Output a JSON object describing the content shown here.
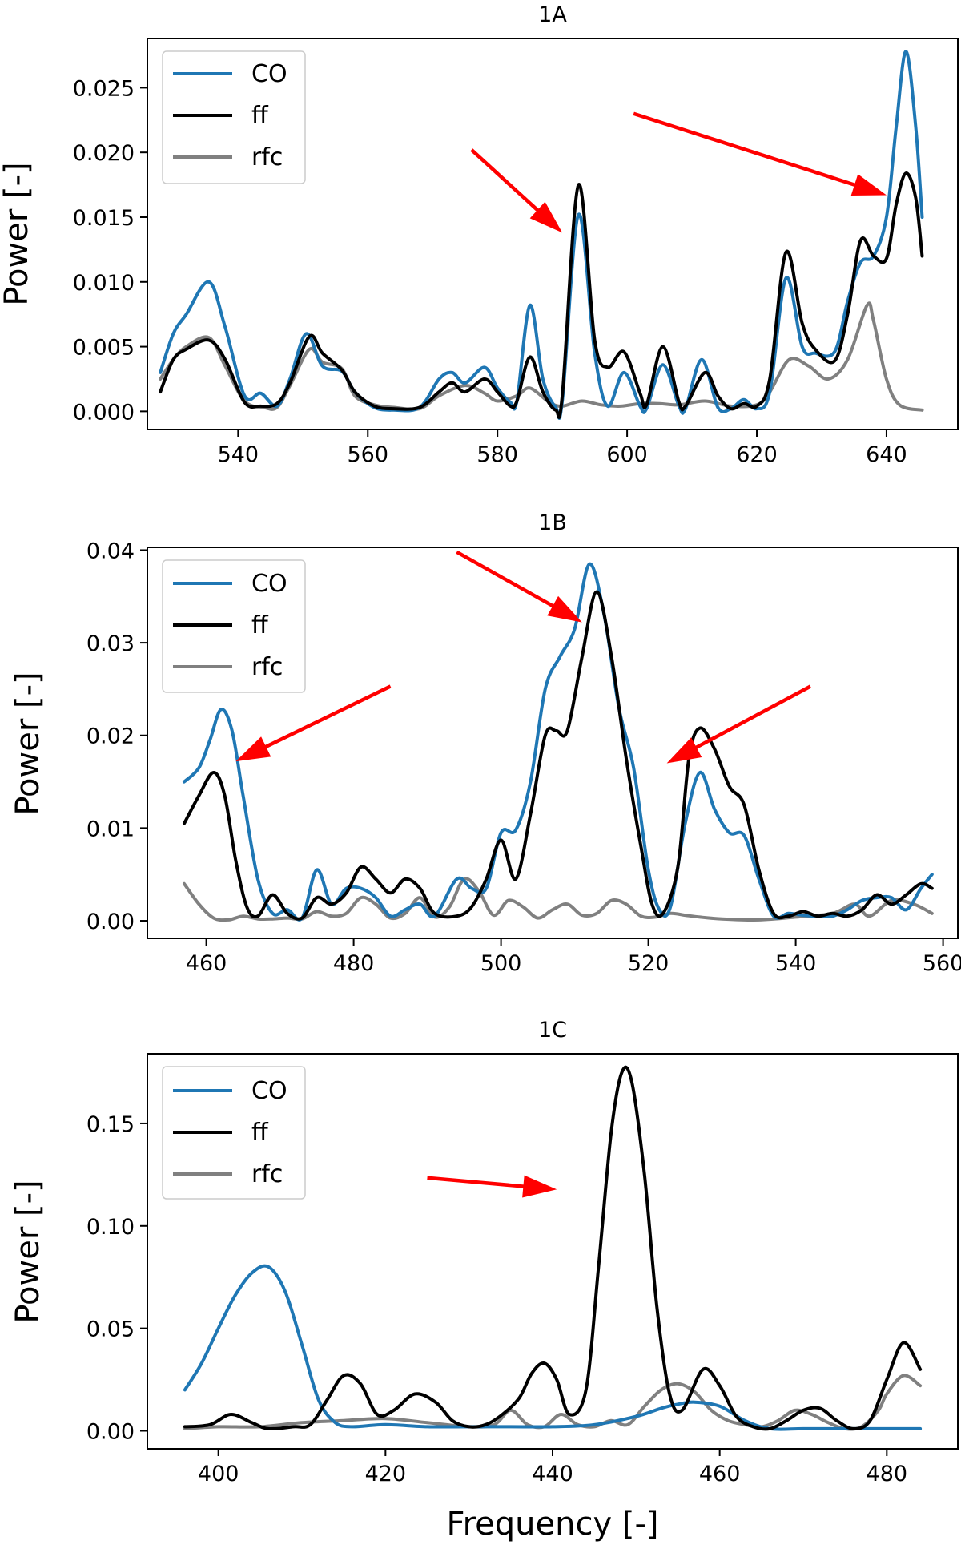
{
  "colors": {
    "CO": "#1f77b4",
    "ff": "#000000",
    "rfc": "#808080",
    "arrow": "#ff0000"
  },
  "chart_data": [
    {
      "type": "line",
      "title": "1A",
      "xlabel": "",
      "ylabel": "Power [-]",
      "xlim": [
        526,
        651
      ],
      "ylim": [
        -0.0014,
        0.0288
      ],
      "xticks": [
        540,
        560,
        580,
        600,
        620,
        640
      ],
      "yticks": [
        0,
        0.005,
        0.01,
        0.015,
        0.02,
        0.025
      ],
      "xtick_labels": [
        "540",
        "560",
        "580",
        "600",
        "620",
        "640"
      ],
      "ytick_labels": [
        "0.000",
        "0.005",
        "0.010",
        "0.015",
        "0.020",
        "0.025"
      ],
      "legend": "upper-left",
      "series": [
        {
          "name": "CO",
          "x": [
            528,
            530,
            532,
            535.5,
            538,
            541,
            543.5,
            546,
            548,
            550.5,
            553,
            556,
            558,
            561,
            564,
            568,
            571,
            573,
            575,
            578,
            580,
            582,
            583,
            585,
            587,
            589,
            590,
            592.5,
            595,
            597,
            599.5,
            602,
            603,
            605.5,
            608,
            609,
            611.5,
            614,
            616,
            618,
            620,
            622,
            624.5,
            627,
            629,
            632,
            634,
            636,
            638,
            640,
            641.5,
            643,
            644.5,
            645.5
          ],
          "y": [
            0.003,
            0.006,
            0.0075,
            0.01,
            0.0065,
            0.0012,
            0.0014,
            0.0004,
            0.0025,
            0.006,
            0.0035,
            0.0031,
            0.0015,
            0.0003,
            0.0001,
            0.0003,
            0.0025,
            0.003,
            0.0022,
            0.0034,
            0.0018,
            0.0007,
            0.0008,
            0.0082,
            0.0025,
            0.0003,
            0.0008,
            0.0152,
            0.0045,
            0.0004,
            0.003,
            0.0004,
            0.0002,
            0.0036,
            0.0004,
            0.0002,
            0.004,
            0.0003,
            0.0002,
            0.0009,
            0.0002,
            0.0015,
            0.0103,
            0.005,
            0.0045,
            0.0046,
            0.0085,
            0.0115,
            0.012,
            0.015,
            0.022,
            0.0278,
            0.022,
            0.015
          ]
        },
        {
          "name": "ff",
          "x": [
            528,
            530,
            532,
            535.5,
            538,
            541,
            543.5,
            546,
            548,
            551,
            553,
            556,
            558,
            561,
            564,
            568,
            571,
            573,
            575,
            578,
            580,
            582,
            583,
            585,
            587,
            589,
            590,
            592.5,
            595,
            597,
            599.5,
            602,
            603,
            605.5,
            608,
            609,
            612,
            614,
            616,
            618,
            620,
            622,
            624.5,
            627,
            629,
            632,
            634,
            636,
            638,
            640,
            641.5,
            643,
            644.5,
            645.5
          ],
          "y": [
            0.0015,
            0.004,
            0.0048,
            0.0055,
            0.004,
            0.0007,
            0.0004,
            0.0006,
            0.0022,
            0.0058,
            0.0045,
            0.0032,
            0.0015,
            0.0004,
            0.0002,
            0.0003,
            0.0015,
            0.0022,
            0.0015,
            0.0025,
            0.0015,
            0.0004,
            0.0008,
            0.0042,
            0.0015,
            0.0001,
            0.0012,
            0.0175,
            0.0055,
            0.0034,
            0.0046,
            0.0014,
            0.0005,
            0.005,
            0.0007,
            0.0004,
            0.003,
            0.0012,
            0.0002,
            0.0006,
            0.0004,
            0.0025,
            0.0123,
            0.0068,
            0.0048,
            0.0039,
            0.0075,
            0.0132,
            0.012,
            0.0118,
            0.016,
            0.0184,
            0.0165,
            0.012
          ]
        },
        {
          "name": "rfc",
          "x": [
            528,
            530,
            532,
            535.5,
            538,
            541,
            544,
            546,
            548,
            551,
            553,
            556,
            558,
            561,
            564,
            568,
            571,
            575,
            578,
            580,
            583,
            585,
            588,
            590,
            593,
            596,
            599,
            602,
            605,
            608,
            612,
            616,
            620,
            622,
            625,
            628,
            631,
            634,
            637,
            638,
            640,
            642,
            645.5
          ],
          "y": [
            0.0025,
            0.004,
            0.005,
            0.0057,
            0.0035,
            0.0008,
            0.0003,
            0.0003,
            0.002,
            0.0048,
            0.0038,
            0.0033,
            0.0012,
            0.0005,
            0.0003,
            0.0002,
            0.0012,
            0.002,
            0.0014,
            0.0008,
            0.0012,
            0.0018,
            0.0007,
            0.0004,
            0.0008,
            0.0005,
            0.0004,
            0.0006,
            0.0006,
            0.0005,
            0.0008,
            0.0004,
            0.0005,
            0.0015,
            0.004,
            0.0035,
            0.0025,
            0.004,
            0.0082,
            0.007,
            0.0025,
            0.0005,
            0.0001
          ]
        }
      ],
      "arrows": [
        {
          "from": [
            576,
            0.0202
          ],
          "to": [
            590,
            0.0138
          ]
        },
        {
          "from": [
            601,
            0.023
          ],
          "to": [
            640,
            0.0167
          ]
        }
      ]
    },
    {
      "type": "line",
      "title": "1B",
      "xlabel": "",
      "ylabel": "Power [-]",
      "xlim": [
        452,
        562
      ],
      "ylim": [
        -0.0019,
        0.0403
      ],
      "xticks": [
        460,
        480,
        500,
        520,
        540,
        560
      ],
      "yticks": [
        0,
        0.01,
        0.02,
        0.03,
        0.04
      ],
      "xtick_labels": [
        "460",
        "480",
        "500",
        "520",
        "540",
        "560"
      ],
      "ytick_labels": [
        "0.00",
        "0.01",
        "0.02",
        "0.03",
        "0.04"
      ],
      "legend": "upper-left",
      "series": [
        {
          "name": "CO",
          "x": [
            457,
            459,
            460.5,
            462,
            463.5,
            465,
            467,
            469,
            471,
            473,
            475,
            477,
            479,
            481,
            483,
            485,
            487,
            489,
            491,
            494,
            496,
            498,
            500,
            502,
            504,
            506,
            508,
            510,
            512,
            514,
            516,
            518,
            520,
            521.5,
            523,
            525,
            527,
            529,
            531,
            533,
            535,
            537,
            539,
            541,
            543,
            545,
            547,
            549,
            551,
            553,
            555,
            557,
            558.5
          ],
          "y": [
            0.015,
            0.0165,
            0.0195,
            0.0228,
            0.0205,
            0.0135,
            0.0045,
            0.0008,
            0.0012,
            0.0003,
            0.0055,
            0.0018,
            0.0035,
            0.0035,
            0.0025,
            0.0005,
            0.0012,
            0.0018,
            0.0005,
            0.0045,
            0.0035,
            0.0035,
            0.0095,
            0.0098,
            0.015,
            0.025,
            0.0285,
            0.0315,
            0.0385,
            0.033,
            0.023,
            0.0165,
            0.0055,
            0.0012,
            0.0015,
            0.0105,
            0.016,
            0.012,
            0.0095,
            0.0092,
            0.0045,
            0.0005,
            0.0008,
            0.0006,
            0.0005,
            0.0005,
            0.0012,
            0.0022,
            0.0025,
            0.0025,
            0.0012,
            0.0035,
            0.005
          ]
        },
        {
          "name": "ff",
          "x": [
            457,
            459,
            461,
            462.5,
            464,
            465.5,
            467,
            469,
            471,
            473,
            475,
            477,
            479,
            481,
            483,
            485,
            487,
            489,
            491,
            494,
            496,
            498,
            500,
            502,
            504,
            506,
            507.5,
            509,
            511,
            513,
            515,
            517,
            519,
            520.5,
            522,
            524,
            525.5,
            527,
            529,
            531,
            533,
            535,
            537,
            539,
            541,
            543,
            545,
            547,
            549,
            551,
            553,
            555,
            557,
            558.5
          ],
          "y": [
            0.0105,
            0.0135,
            0.016,
            0.0135,
            0.0065,
            0.0015,
            0.0005,
            0.0028,
            0.0008,
            0.0003,
            0.0025,
            0.0018,
            0.003,
            0.0058,
            0.0045,
            0.003,
            0.0045,
            0.0035,
            0.0008,
            0.0005,
            0.0015,
            0.0045,
            0.0087,
            0.0045,
            0.0115,
            0.02,
            0.0205,
            0.0205,
            0.0285,
            0.0355,
            0.0285,
            0.0175,
            0.008,
            0.0018,
            0.0008,
            0.0058,
            0.0175,
            0.0208,
            0.0185,
            0.0145,
            0.0125,
            0.0055,
            0.0008,
            0.0005,
            0.001,
            0.0005,
            0.0008,
            0.0005,
            0.0012,
            0.0028,
            0.0018,
            0.0028,
            0.004,
            0.0035
          ]
        },
        {
          "name": "rfc",
          "x": [
            457,
            459,
            461,
            463,
            465,
            467,
            469,
            471,
            473,
            475,
            477,
            479,
            481,
            483,
            485,
            487,
            489,
            491,
            493,
            495,
            497,
            499,
            501,
            503,
            505,
            507,
            509,
            511,
            513,
            515,
            517,
            519,
            521,
            523,
            525,
            527,
            530,
            535,
            540,
            545,
            548,
            550,
            553,
            556,
            558.5
          ],
          "y": [
            0.004,
            0.0018,
            0.0003,
            0.0001,
            0.0005,
            0.0002,
            0.0002,
            0.0003,
            0.0002,
            0.001,
            0.0005,
            0.0008,
            0.0025,
            0.0018,
            0.0003,
            0.0008,
            0.0025,
            0.0004,
            0.0015,
            0.0045,
            0.0032,
            0.0006,
            0.0022,
            0.0015,
            0.0003,
            0.0012,
            0.0018,
            0.0006,
            0.0008,
            0.0022,
            0.0018,
            0.0005,
            0.0004,
            0.0008,
            0.0006,
            0.0004,
            0.0002,
            0.0001,
            0.0004,
            0.0008,
            0.0018,
            0.0005,
            0.0022,
            0.0018,
            0.0008
          ]
        }
      ],
      "arrows": [
        {
          "from": [
            485,
            0.0253
          ],
          "to": [
            464,
            0.0172
          ]
        },
        {
          "from": [
            494,
            0.0398
          ],
          "to": [
            511,
            0.0322
          ]
        },
        {
          "from": [
            542,
            0.0253
          ],
          "to": [
            522.5,
            0.017
          ]
        }
      ]
    },
    {
      "type": "line",
      "title": "1C",
      "xlabel": "Frequency [-]",
      "ylabel": "Power [-]",
      "xlim": [
        391.5,
        488.5
      ],
      "ylim": [
        -0.0088,
        0.184
      ],
      "xticks": [
        400,
        420,
        440,
        460,
        480
      ],
      "yticks": [
        0,
        0.05,
        0.1,
        0.15
      ],
      "xtick_labels": [
        "400",
        "420",
        "440",
        "460",
        "480"
      ],
      "ytick_labels": [
        "0.00",
        "0.05",
        "0.10",
        "0.15"
      ],
      "legend": "upper-left",
      "series": [
        {
          "name": "CO",
          "x": [
            396,
            398,
            400,
            402,
            404,
            406,
            408,
            410,
            412,
            414,
            416,
            420,
            425,
            430,
            435,
            440,
            445,
            450,
            453,
            455,
            457,
            460,
            463,
            466,
            470,
            475,
            480,
            484
          ],
          "y": [
            0.02,
            0.033,
            0.05,
            0.066,
            0.077,
            0.08,
            0.068,
            0.042,
            0.015,
            0.004,
            0.002,
            0.003,
            0.002,
            0.002,
            0.002,
            0.002,
            0.003,
            0.007,
            0.011,
            0.013,
            0.014,
            0.012,
            0.005,
            0.001,
            0.001,
            0.001,
            0.001,
            0.001
          ]
        },
        {
          "name": "ff",
          "x": [
            396,
            399,
            401.5,
            404,
            406,
            409,
            411,
            413,
            415,
            417,
            419,
            421,
            423.5,
            426,
            428,
            430,
            432,
            434,
            436,
            437.5,
            439,
            440.5,
            442,
            444,
            445.5,
            447,
            448.3,
            449.5,
            451,
            452.5,
            454,
            455.5,
            458,
            460,
            462,
            464,
            466,
            468,
            470,
            472,
            474,
            476,
            478,
            480,
            482,
            484
          ],
          "y": [
            0.002,
            0.003,
            0.008,
            0.004,
            0.001,
            0.002,
            0.003,
            0.015,
            0.027,
            0.023,
            0.008,
            0.01,
            0.018,
            0.014,
            0.005,
            0.002,
            0.003,
            0.008,
            0.016,
            0.028,
            0.033,
            0.025,
            0.008,
            0.02,
            0.08,
            0.145,
            0.175,
            0.17,
            0.125,
            0.06,
            0.018,
            0.01,
            0.03,
            0.022,
            0.007,
            0.002,
            0.001,
            0.005,
            0.01,
            0.011,
            0.005,
            0.001,
            0.005,
            0.025,
            0.043,
            0.03
          ]
        },
        {
          "name": "rfc",
          "x": [
            396,
            400,
            405,
            410,
            415,
            420,
            425,
            430,
            433,
            435,
            437,
            439,
            441,
            443,
            445,
            447,
            449,
            451,
            453,
            455,
            457,
            459,
            461,
            463,
            465,
            467,
            469,
            471,
            473,
            475,
            477,
            479,
            480,
            482,
            484
          ],
          "y": [
            0.001,
            0.002,
            0.002,
            0.004,
            0.005,
            0.006,
            0.004,
            0.002,
            0.003,
            0.01,
            0.003,
            0.002,
            0.008,
            0.003,
            0.002,
            0.005,
            0.003,
            0.012,
            0.02,
            0.023,
            0.019,
            0.01,
            0.005,
            0.003,
            0.002,
            0.005,
            0.01,
            0.008,
            0.004,
            0.001,
            0.002,
            0.01,
            0.018,
            0.027,
            0.022
          ]
        }
      ],
      "arrows": [
        {
          "from": [
            425,
            0.1235
          ],
          "to": [
            440.5,
            0.1178
          ]
        }
      ]
    }
  ]
}
